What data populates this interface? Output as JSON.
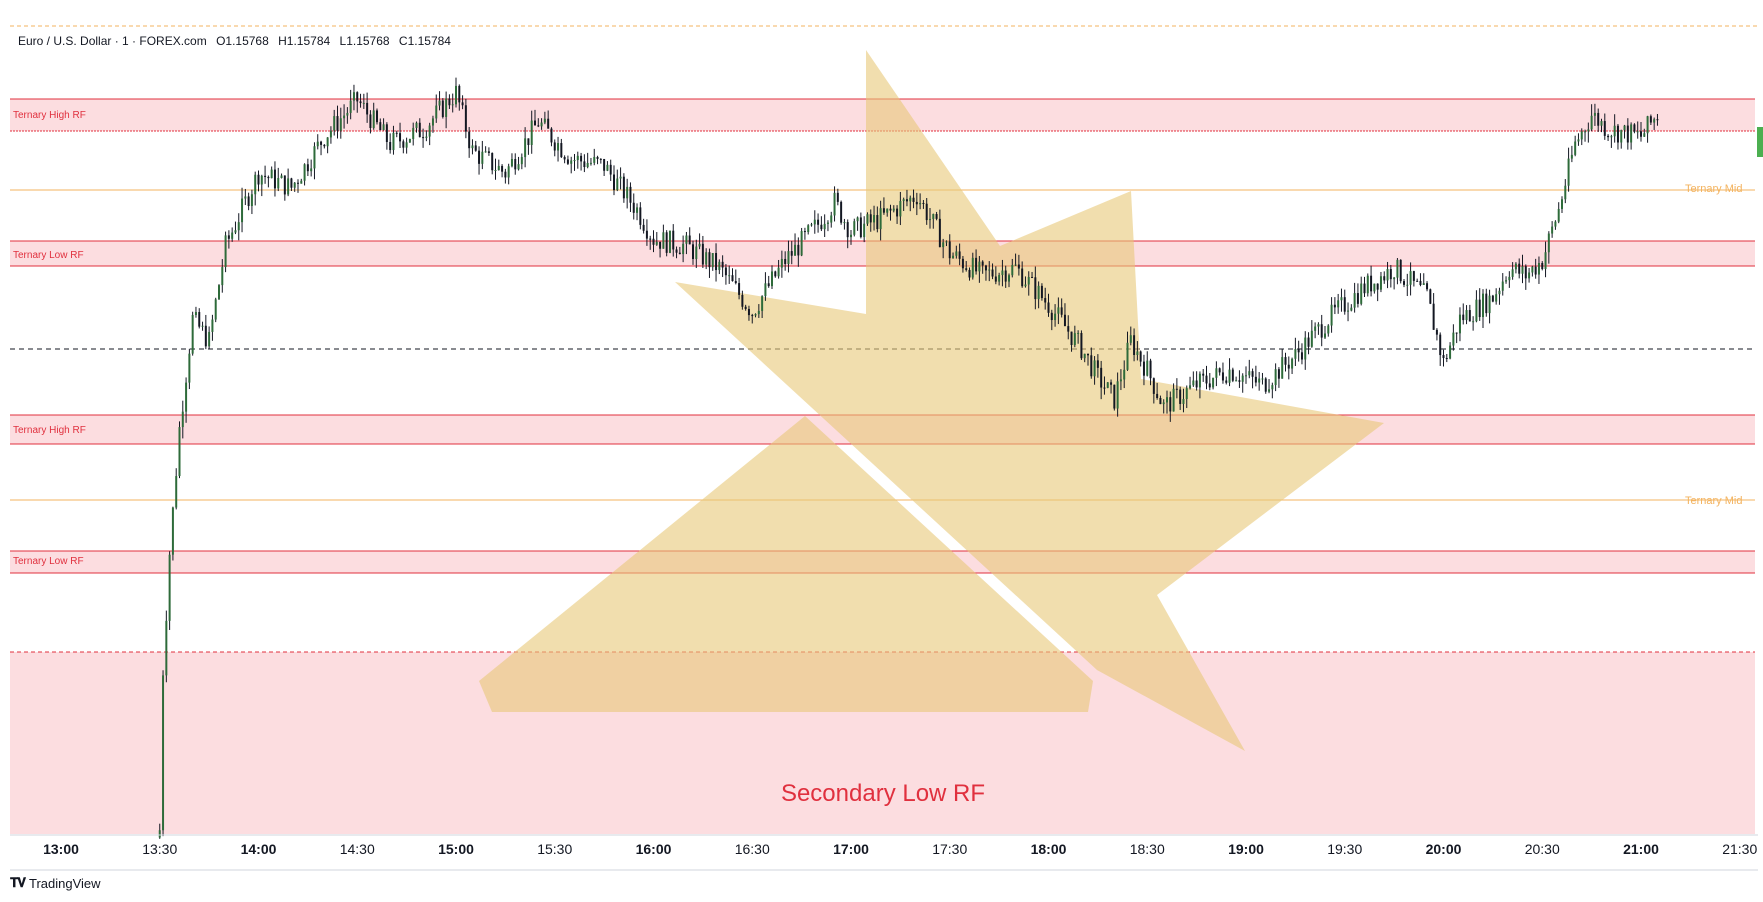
{
  "header": {
    "symbol": "Euro / U.S. Dollar · 1 · FOREX.com",
    "open": "O1.15768",
    "high": "H1.15784",
    "low": "L1.15768",
    "close": "C1.15784"
  },
  "zones": {
    "upper_high": "Ternary High RF",
    "upper_mid": "Ternary Mid",
    "upper_low": "Ternary Low RF",
    "lower_high": "Ternary High RF",
    "lower_mid": "Ternary Mid",
    "lower_low": "Ternary Low RF",
    "secondary_low": "Secondary Low RF"
  },
  "footer": {
    "brand": "TradingView",
    "brand_icon": "tradingview-logo-icon"
  },
  "colors": {
    "zone_fill": "#fcdde0",
    "zone_line": "#e0303e",
    "mid_line": "#f3b35f",
    "shape_fill": "#e8c878",
    "candle": "#131722",
    "up_body": "#2e6b3a"
  },
  "chart_data": {
    "type": "candlestick",
    "title": "Euro / U.S. Dollar · 1 · FOREX.com",
    "xlabel": "",
    "ylabel": "",
    "grid": false,
    "x_ticks": [
      "13:00",
      "13:30",
      "14:00",
      "14:30",
      "15:00",
      "15:30",
      "16:00",
      "16:30",
      "17:00",
      "17:30",
      "18:00",
      "18:30",
      "19:00",
      "19:30",
      "20:00",
      "20:30",
      "21:00",
      "21:30"
    ],
    "x_ticks_bold": [
      "13:00",
      "14:00",
      "15:00",
      "16:00",
      "17:00",
      "18:00",
      "19:00",
      "20:00",
      "21:00"
    ],
    "price_path": [
      [
        "13:30",
        0
      ],
      [
        "13:31",
        22
      ],
      [
        "13:33",
        38
      ],
      [
        "13:36",
        55
      ],
      [
        "13:40",
        70
      ],
      [
        "13:45",
        67
      ],
      [
        "13:50",
        80
      ],
      [
        "14:00",
        90
      ],
      [
        "14:10",
        88
      ],
      [
        "14:20",
        95
      ],
      [
        "14:30",
        100
      ],
      [
        "14:40",
        94
      ],
      [
        "14:50",
        96
      ],
      [
        "15:00",
        101
      ],
      [
        "15:05",
        93
      ],
      [
        "15:15",
        90
      ],
      [
        "15:25",
        97
      ],
      [
        "15:35",
        92
      ],
      [
        "15:45",
        91
      ],
      [
        "15:55",
        85
      ],
      [
        "16:00",
        81
      ],
      [
        "16:10",
        80
      ],
      [
        "16:20",
        77
      ],
      [
        "16:30",
        71
      ],
      [
        "16:40",
        78
      ],
      [
        "16:50",
        83
      ],
      [
        "16:55",
        86
      ],
      [
        "17:00",
        82
      ],
      [
        "17:10",
        84
      ],
      [
        "17:20",
        87
      ],
      [
        "17:25",
        83
      ],
      [
        "17:30",
        79
      ],
      [
        "17:40",
        76
      ],
      [
        "17:50",
        77
      ],
      [
        "18:00",
        72
      ],
      [
        "18:10",
        66
      ],
      [
        "18:15",
        62
      ],
      [
        "18:20",
        59
      ],
      [
        "18:25",
        67
      ],
      [
        "18:30",
        63
      ],
      [
        "18:35",
        58
      ],
      [
        "18:45",
        61
      ],
      [
        "18:55",
        63
      ],
      [
        "19:05",
        61
      ],
      [
        "19:15",
        65
      ],
      [
        "19:25",
        70
      ],
      [
        "19:35",
        74
      ],
      [
        "19:45",
        77
      ],
      [
        "19:55",
        73
      ],
      [
        "20:00",
        64
      ],
      [
        "20:05",
        70
      ],
      [
        "20:15",
        73
      ],
      [
        "20:20",
        77
      ],
      [
        "20:25",
        76
      ],
      [
        "20:30",
        78
      ],
      [
        "20:35",
        85
      ],
      [
        "20:40",
        94
      ],
      [
        "20:45",
        98
      ],
      [
        "20:50",
        96
      ],
      [
        "21:00",
        95
      ],
      [
        "21:05",
        98
      ]
    ],
    "levels": [
      {
        "name": "Ternary High RF",
        "kind": "zone"
      },
      {
        "name": "Ternary Mid",
        "kind": "line"
      },
      {
        "name": "Ternary Low RF",
        "kind": "zone"
      },
      {
        "name": "Ternary High RF",
        "kind": "zone"
      },
      {
        "name": "Ternary Mid",
        "kind": "line"
      },
      {
        "name": "Ternary Low RF",
        "kind": "zone"
      },
      {
        "name": "Secondary Low RF",
        "kind": "zone"
      }
    ]
  }
}
